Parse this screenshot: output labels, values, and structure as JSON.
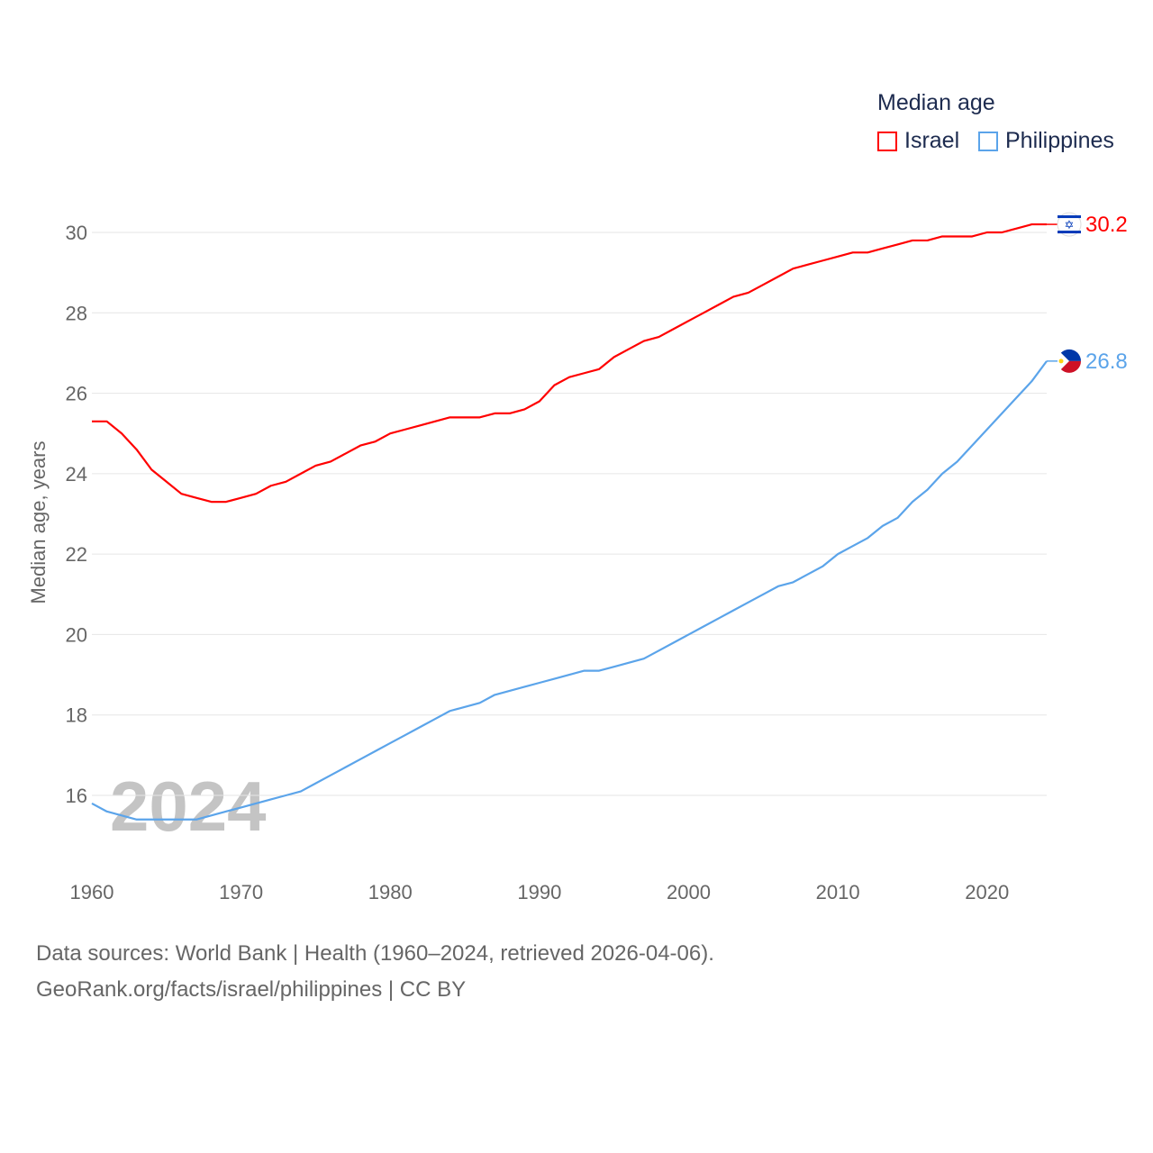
{
  "chart_data": {
    "type": "line",
    "title": "Median age",
    "xlabel": "",
    "ylabel": "Median age, years",
    "xlim": [
      1960,
      2024
    ],
    "ylim": [
      15,
      31
    ],
    "x_ticks": [
      "1960",
      "1970",
      "1980",
      "1990",
      "2000",
      "2010",
      "2020"
    ],
    "y_ticks": [
      "16",
      "18",
      "20",
      "22",
      "24",
      "26",
      "28",
      "30"
    ],
    "grid": true,
    "legend_placement": "top-right",
    "watermark_year": "2024",
    "x": [
      1960,
      1961,
      1962,
      1963,
      1964,
      1965,
      1966,
      1967,
      1968,
      1969,
      1970,
      1971,
      1972,
      1973,
      1974,
      1975,
      1976,
      1977,
      1978,
      1979,
      1980,
      1981,
      1982,
      1983,
      1984,
      1985,
      1986,
      1987,
      1988,
      1989,
      1990,
      1991,
      1992,
      1993,
      1994,
      1995,
      1996,
      1997,
      1998,
      1999,
      2000,
      2001,
      2002,
      2003,
      2004,
      2005,
      2006,
      2007,
      2008,
      2009,
      2010,
      2011,
      2012,
      2013,
      2014,
      2015,
      2016,
      2017,
      2018,
      2019,
      2020,
      2021,
      2022,
      2023,
      2024
    ],
    "series": [
      {
        "name": "Israel",
        "color": "#ff0000",
        "end_label": "30.2",
        "values": [
          25.3,
          25.3,
          25.0,
          24.6,
          24.1,
          23.8,
          23.5,
          23.4,
          23.3,
          23.3,
          23.4,
          23.5,
          23.7,
          23.8,
          24.0,
          24.2,
          24.3,
          24.5,
          24.7,
          24.8,
          25.0,
          25.1,
          25.2,
          25.3,
          25.4,
          25.4,
          25.4,
          25.5,
          25.5,
          25.6,
          25.8,
          26.2,
          26.4,
          26.5,
          26.6,
          26.9,
          27.1,
          27.3,
          27.4,
          27.6,
          27.8,
          28.0,
          28.2,
          28.4,
          28.5,
          28.7,
          28.9,
          29.1,
          29.2,
          29.3,
          29.4,
          29.5,
          29.5,
          29.6,
          29.7,
          29.8,
          29.8,
          29.9,
          29.9,
          29.9,
          30.0,
          30.0,
          30.1,
          30.2,
          30.2
        ]
      },
      {
        "name": "Philippines",
        "color": "#5ba4ea",
        "end_label": "26.8",
        "values": [
          15.8,
          15.6,
          15.5,
          15.4,
          15.4,
          15.4,
          15.4,
          15.4,
          15.5,
          15.6,
          15.7,
          15.8,
          15.9,
          16.0,
          16.1,
          16.3,
          16.5,
          16.7,
          16.9,
          17.1,
          17.3,
          17.5,
          17.7,
          17.9,
          18.1,
          18.2,
          18.3,
          18.5,
          18.6,
          18.7,
          18.8,
          18.9,
          19.0,
          19.1,
          19.1,
          19.2,
          19.3,
          19.4,
          19.6,
          19.8,
          20.0,
          20.2,
          20.4,
          20.6,
          20.8,
          21.0,
          21.2,
          21.3,
          21.5,
          21.7,
          22.0,
          22.2,
          22.4,
          22.7,
          22.9,
          23.3,
          23.6,
          24.0,
          24.3,
          24.7,
          25.1,
          25.5,
          25.9,
          26.3,
          26.8
        ]
      }
    ]
  },
  "footer": {
    "line1": "Data sources: World Bank | Health (1960–2024, retrieved 2026-04-06).",
    "line2": "GeoRank.org/facts/israel/philippines | CC BY"
  }
}
